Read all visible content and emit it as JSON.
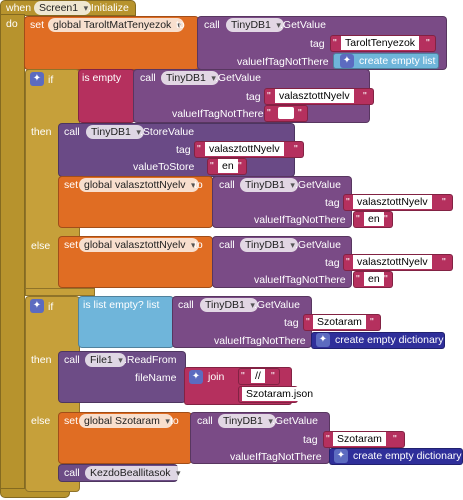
{
  "event": {
    "when": "when",
    "component": "Screen1",
    "event_name": ".Initialize",
    "do": "do"
  },
  "block1": {
    "set": "set",
    "var": "global TaroltMatTenyezok",
    "to": "to",
    "call": "call",
    "component": "TinyDB1",
    "method": ".GetValue",
    "tag_label": "tag",
    "tag_value": "TaroltTenyezok",
    "vitn_label": "valueIfTagNotThere",
    "vitn_value": "create empty list"
  },
  "if1": {
    "if": "if",
    "is_empty": "is empty",
    "call": "call",
    "component": "TinyDB1",
    "method": ".GetValue",
    "tag_label": "tag",
    "tag_value": "valasztottNyelv",
    "vitn_label": "valueIfTagNotThere",
    "vitn_value": " "
  },
  "then1": {
    "then": "then",
    "call": "call",
    "component": "TinyDB1",
    "method": ".StoreValue",
    "tag_label": "tag",
    "tag_value": "valasztottNyelv",
    "vts_label": "valueToStore",
    "vts_value": "en",
    "set": "set",
    "var": "global valasztottNyelv",
    "to": "to",
    "call2": "call",
    "component2": "TinyDB1",
    "method2": ".GetValue",
    "tag2_label": "tag",
    "tag2_value": "valasztottNyelv",
    "vitn_label": "valueIfTagNotThere",
    "vitn_value": "en"
  },
  "else1": {
    "else": "else",
    "set": "set",
    "var": "global valasztottNyelv",
    "to": "to",
    "call": "call",
    "component": "TinyDB1",
    "method": ".GetValue",
    "tag_label": "tag",
    "tag_value": "valasztottNyelv",
    "vitn_label": "valueIfTagNotThere",
    "vitn_value": "en"
  },
  "if2": {
    "if": "if",
    "cond": "is list empty?  list",
    "call": "call",
    "component": "TinyDB1",
    "method": ".GetValue",
    "tag_label": "tag",
    "tag_value": "Szotaram",
    "vitn_label": "valueIfTagNotThere",
    "vitn_value": "create empty dictionary"
  },
  "then2": {
    "then": "then",
    "call": "call",
    "component": "File1",
    "method": ".ReadFrom",
    "fn_label": "fileName",
    "join": "join",
    "j1": "//",
    "j2": "Szotaram.json"
  },
  "else2": {
    "else": "else",
    "set": "set",
    "var": "global Szotaram",
    "to": "to",
    "call": "call",
    "component": "TinyDB1",
    "method": ".GetValue",
    "tag_label": "tag",
    "tag_value": "Szotaram",
    "vitn_label": "valueIfTagNotThere",
    "vitn_value": "create empty dictionary",
    "call2": "call",
    "proc": "KezdoBeallitasok"
  }
}
